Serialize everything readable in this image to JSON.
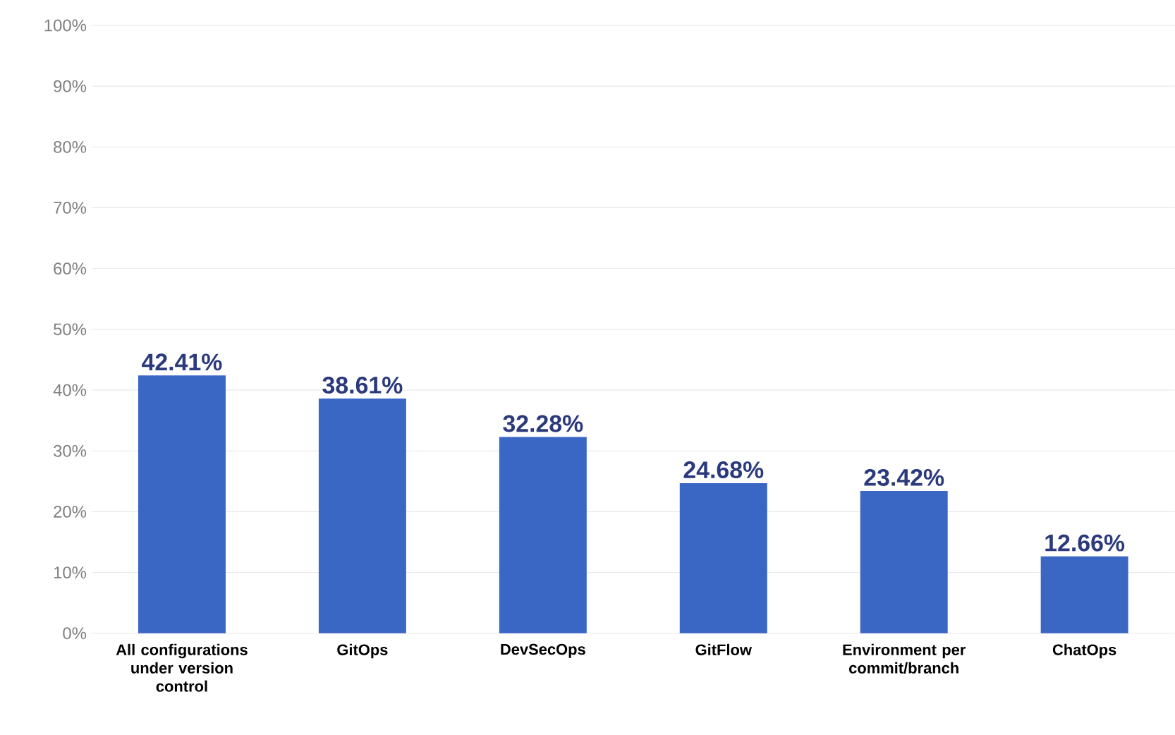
{
  "chart_data": {
    "type": "bar",
    "categories": [
      "All configurations under version control",
      "GitOps",
      "DevSecOps",
      "GitFlow",
      "Environment per commit/branch",
      "ChatOps"
    ],
    "values": [
      42.41,
      38.61,
      32.28,
      24.68,
      23.42,
      12.66
    ],
    "value_labels": [
      "42.41%",
      "38.61%",
      "32.28%",
      "24.68%",
      "23.42%",
      "12.66%"
    ],
    "color": "#3a66c4",
    "ylim": [
      0,
      100
    ],
    "yticks": [
      {
        "value": 0,
        "label": "0%"
      },
      {
        "value": 10,
        "label": "10%"
      },
      {
        "value": 20,
        "label": "20%"
      },
      {
        "value": 30,
        "label": "30%"
      },
      {
        "value": 40,
        "label": "40%"
      },
      {
        "value": 50,
        "label": "50%"
      },
      {
        "value": 60,
        "label": "60%"
      },
      {
        "value": 70,
        "label": "70%"
      },
      {
        "value": 80,
        "label": "80%"
      },
      {
        "value": 90,
        "label": "90%"
      },
      {
        "value": 100,
        "label": "100%"
      }
    ],
    "grid": "y"
  }
}
